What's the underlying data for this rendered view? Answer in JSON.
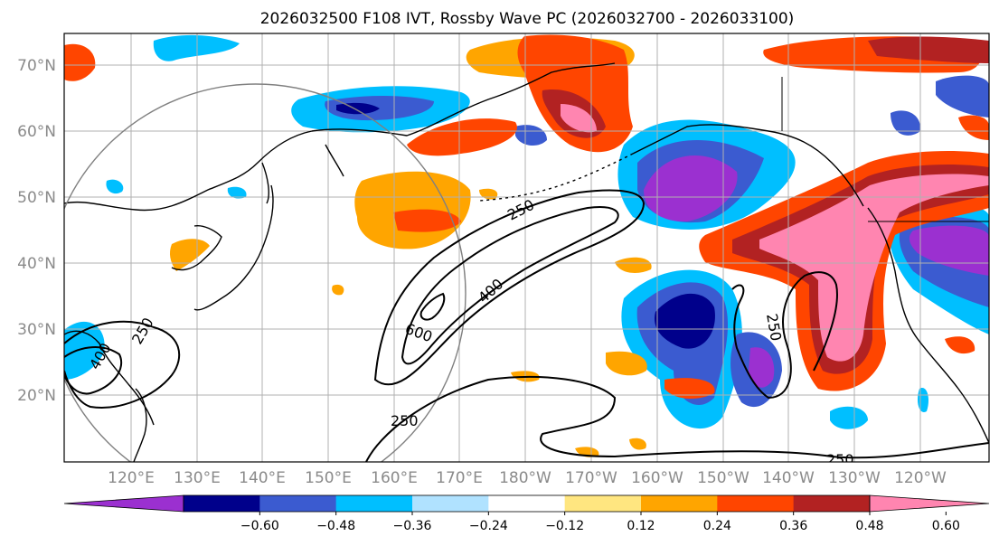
{
  "title": "2026032500 F108 IVT, Rossby Wave PC (2026032700 - 2026033100)",
  "map": {
    "lat_labels": [
      "70°N",
      "60°N",
      "50°N",
      "40°N",
      "30°N",
      "20°N"
    ],
    "lon_labels": [
      "120°E",
      "130°E",
      "140°E",
      "150°E",
      "160°E",
      "170°E",
      "180°W",
      "170°W",
      "160°W",
      "150°W",
      "140°W",
      "130°W",
      "120°W"
    ],
    "contour_labels": [
      "250",
      "400",
      "600",
      "250",
      "250",
      "250",
      "400",
      "250"
    ],
    "colors": {
      "background": "#ffffff",
      "coast": "#000000",
      "grid": "#b0b0b0",
      "circle": "#808080"
    }
  },
  "colorbar": {
    "tick_labels": [
      "−0.60",
      "−0.48",
      "−0.36",
      "−0.24",
      "−0.12",
      "0.12",
      "0.24",
      "0.36",
      "0.48",
      "0.60"
    ],
    "colors": [
      "#9b30d0",
      "#00008b",
      "#3b5bd0",
      "#00bfff",
      "#b0e2ff",
      "#ffffff",
      "#ffe680",
      "#ffa500",
      "#ff4500",
      "#b22222",
      "#ff85b0"
    ]
  }
}
